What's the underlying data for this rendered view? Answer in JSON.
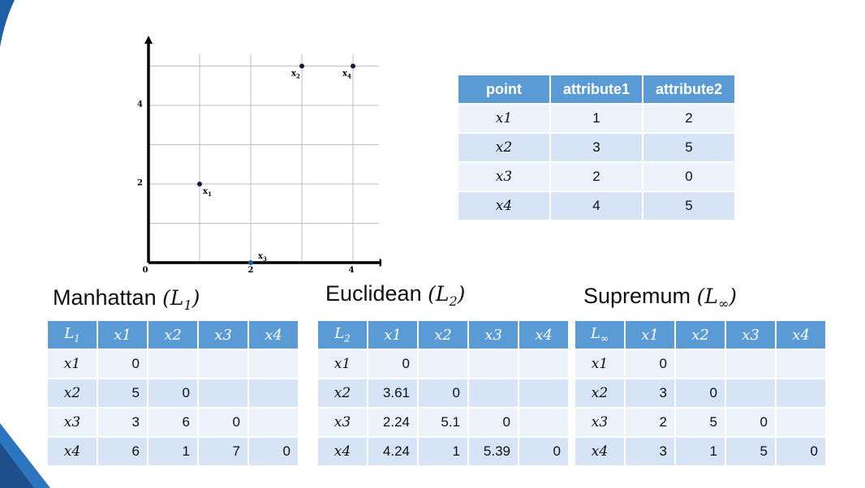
{
  "colors": {
    "header": "#5b9bd5",
    "row_a": "#ecf2fa",
    "row_b": "#d6e4f5",
    "accent": "#1f5fa8"
  },
  "chart_data": {
    "type": "scatter",
    "x_ticks": [
      "0",
      "2",
      "4"
    ],
    "y_ticks": [
      "2",
      "4"
    ],
    "xlim": [
      0,
      4.6
    ],
    "ylim": [
      0,
      5.4
    ],
    "grid": true,
    "points": [
      {
        "label": "x",
        "sub": "1",
        "x": 1,
        "y": 2
      },
      {
        "label": "x",
        "sub": "2",
        "x": 3,
        "y": 5
      },
      {
        "label": "x",
        "sub": "3",
        "x": 2,
        "y": 0
      },
      {
        "label": "x",
        "sub": "4",
        "x": 4,
        "y": 5
      }
    ]
  },
  "attributes": {
    "headers": [
      "point",
      "attribute1",
      "attribute2"
    ],
    "rows": [
      [
        "x1",
        "1",
        "2"
      ],
      [
        "x2",
        "3",
        "5"
      ],
      [
        "x3",
        "2",
        "0"
      ],
      [
        "x4",
        "4",
        "5"
      ]
    ]
  },
  "manhattan": {
    "title": "Manhattan",
    "symbol": "L",
    "sub": "1",
    "headers": [
      "x1",
      "x2",
      "x3",
      "x4"
    ],
    "rows": [
      [
        "x1",
        "0",
        "",
        "",
        ""
      ],
      [
        "x2",
        "5",
        "0",
        "",
        ""
      ],
      [
        "x3",
        "3",
        "6",
        "0",
        ""
      ],
      [
        "x4",
        "6",
        "1",
        "7",
        "0"
      ]
    ]
  },
  "euclidean": {
    "title": "Euclidean",
    "symbol": "L",
    "sub": "2",
    "headers": [
      "x1",
      "x2",
      "x3",
      "x4"
    ],
    "rows": [
      [
        "x1",
        "0",
        "",
        "",
        ""
      ],
      [
        "x2",
        "3.61",
        "0",
        "",
        ""
      ],
      [
        "x3",
        "2.24",
        "5.1",
        "0",
        ""
      ],
      [
        "x4",
        "4.24",
        "1",
        "5.39",
        "0"
      ]
    ]
  },
  "supremum": {
    "title": "Supremum",
    "symbol": "L",
    "sub": "∞",
    "headers": [
      "x1",
      "x2",
      "x3",
      "x4"
    ],
    "rows": [
      [
        "x1",
        "0",
        "",
        "",
        ""
      ],
      [
        "x2",
        "3",
        "0",
        "",
        ""
      ],
      [
        "x3",
        "2",
        "5",
        "0",
        ""
      ],
      [
        "x4",
        "3",
        "1",
        "5",
        "0"
      ]
    ]
  }
}
